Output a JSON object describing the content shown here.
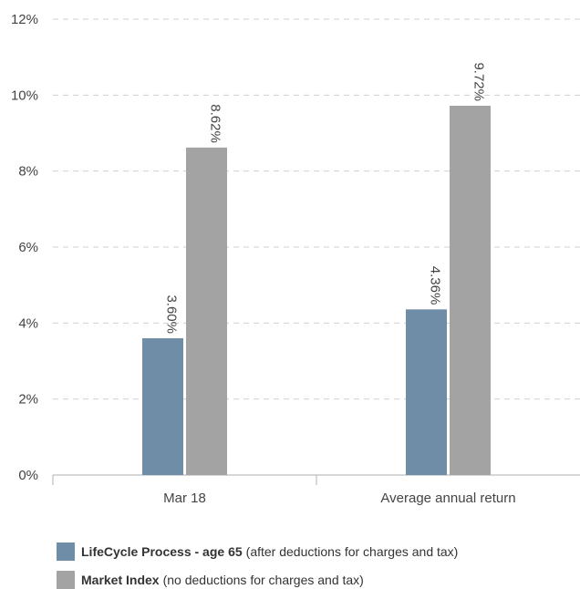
{
  "chart_data": {
    "type": "bar",
    "categories": [
      "Mar 18",
      "Average annual return"
    ],
    "series": [
      {
        "name": "LifeCycle Process - age 65",
        "color": "#6f8da6",
        "values": [
          3.6,
          4.36
        ],
        "labels": [
          "3.60%",
          "4.36%"
        ]
      },
      {
        "name": "Market Index",
        "color": "#a3a3a3",
        "values": [
          8.62,
          9.72
        ],
        "labels": [
          "8.62%",
          "9.72%"
        ]
      }
    ],
    "ylim": [
      0,
      12
    ],
    "yticks": [
      0,
      2,
      4,
      6,
      8,
      10,
      12
    ],
    "ytick_labels": [
      "0%",
      "2%",
      "4%",
      "6%",
      "8%",
      "10%",
      "12%"
    ],
    "grid": true,
    "legend_position": "bottom-left"
  },
  "legend": [
    {
      "name": "LifeCycle Process - age 65",
      "note": "(after deductions for charges and tax)",
      "color": "#6f8da6"
    },
    {
      "name": "Market Index",
      "note": "(no deductions for charges and tax)",
      "color": "#a3a3a3"
    }
  ]
}
